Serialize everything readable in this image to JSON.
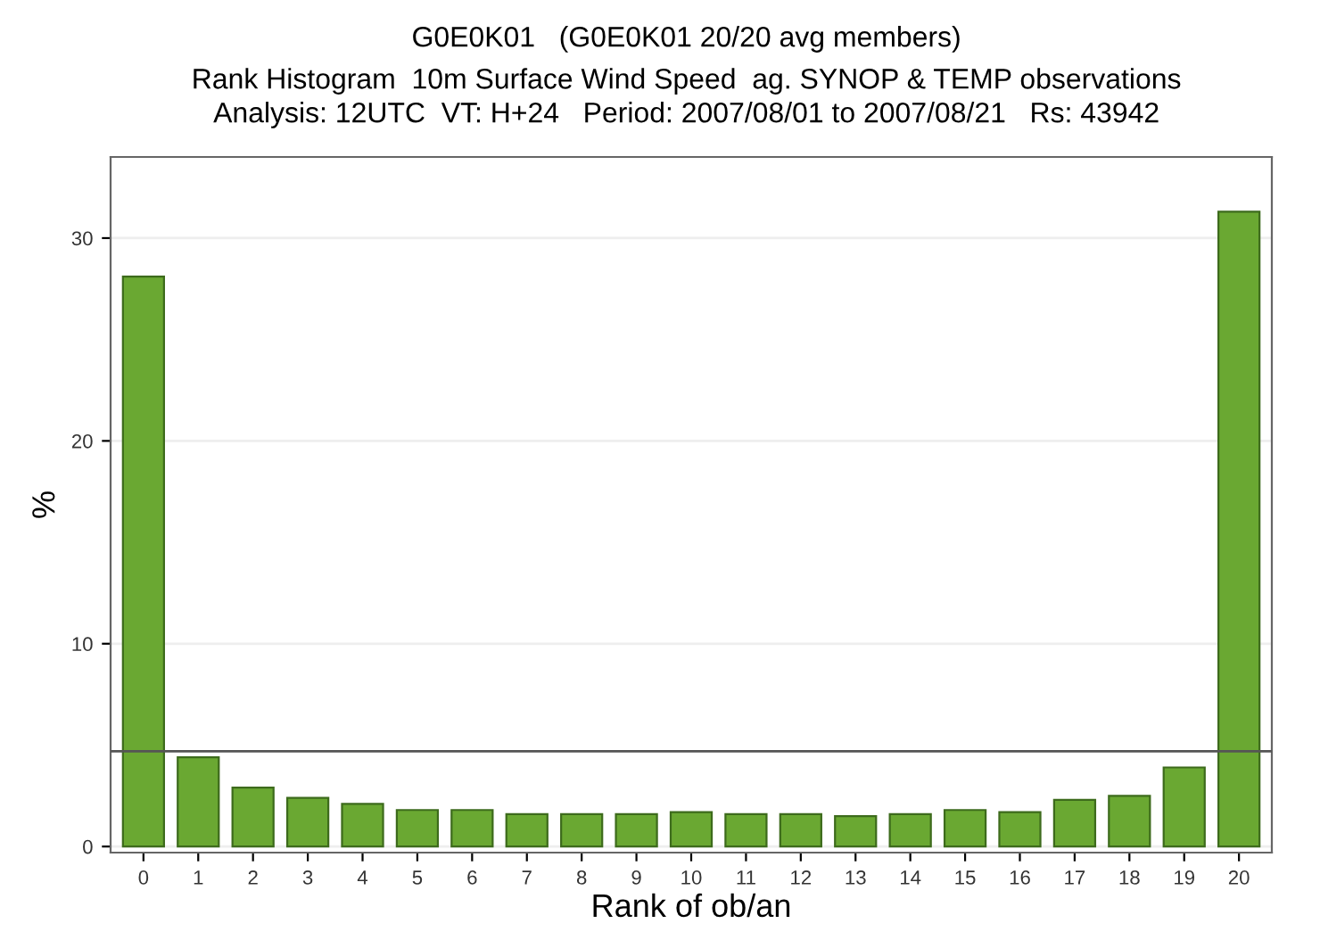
{
  "chart_data": {
    "type": "bar",
    "title": "G0E0K01   (G0E0K01 20/20 avg members)",
    "subtitle": "Rank Histogram  10m Surface Wind Speed  ag. SYNOP & TEMP observations\nAnalysis: 12UTC  VT: H+24   Period: 2007/08/01 to 2007/08/21   Rs: 43942",
    "xlabel": "Rank of ob/an",
    "ylabel": "%",
    "categories": [
      "0",
      "1",
      "2",
      "3",
      "4",
      "5",
      "6",
      "7",
      "8",
      "9",
      "10",
      "11",
      "12",
      "13",
      "14",
      "15",
      "16",
      "17",
      "18",
      "19",
      "20"
    ],
    "values": [
      28.1,
      4.4,
      2.9,
      2.4,
      2.1,
      1.8,
      1.8,
      1.6,
      1.6,
      1.6,
      1.7,
      1.6,
      1.6,
      1.5,
      1.6,
      1.8,
      1.7,
      2.3,
      2.5,
      3.9,
      31.3
    ],
    "color": "#6aa832",
    "ylim": [
      -0.3,
      34
    ],
    "yticks": [
      0,
      10,
      20,
      30
    ],
    "grid": "y",
    "ref_lines": [
      {
        "axis": "y",
        "value": 4.7,
        "color": "#555555"
      }
    ]
  }
}
